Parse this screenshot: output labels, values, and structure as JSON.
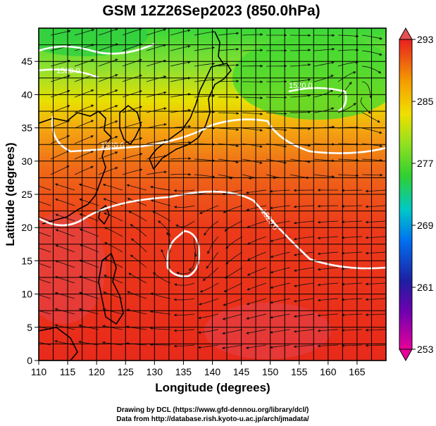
{
  "title": "GSM 12Z26Sep2023 (850.0hPa)",
  "map": {
    "x_axis": {
      "label": "Longitude (degrees)",
      "range": [
        110,
        170
      ],
      "ticks": [
        110,
        115,
        120,
        125,
        130,
        135,
        140,
        145,
        150,
        155,
        160,
        165
      ]
    },
    "y_axis": {
      "label": "Latitude  (degrees)",
      "range": [
        0,
        50
      ],
      "ticks": [
        0,
        5,
        10,
        15,
        20,
        25,
        30,
        35,
        40,
        45
      ]
    },
    "grid": true,
    "field": "temperature",
    "overlays": [
      "streamlines",
      "geopotential-height-contours",
      "coastlines"
    ]
  },
  "colorbar": {
    "min": 253,
    "max": 293,
    "labels": [
      "293",
      "285",
      "277",
      "269",
      "261",
      "253"
    ],
    "colors": [
      "#e8009a",
      "#1e1ea0",
      "#0070f0",
      "#00c8c8",
      "#30d030",
      "#90e020",
      "#f0e000",
      "#f4a000",
      "#f05010",
      "#e82020"
    ]
  },
  "contours": [
    {
      "label": "1520.0",
      "color": "#ffffff"
    }
  ],
  "credits": {
    "line1": "Drawing by DCL (https://www.gfd-dennou.org/library/dcl/)",
    "line2": "Data from http://database.rish.kyoto-u.ac.jp/arch/jmadata/"
  }
}
